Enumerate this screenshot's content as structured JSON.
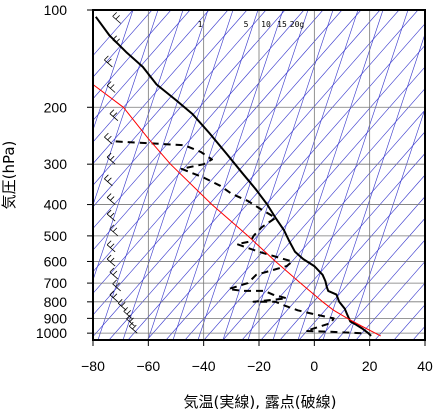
{
  "chart_data": {
    "type": "line",
    "diagram": "skew-T log-P",
    "xlabel": "気温(実線), 露点(破線)",
    "ylabel": "気圧(hPa)",
    "xlim": [
      -80,
      40
    ],
    "ylim": [
      1050,
      100
    ],
    "y_scale": "log",
    "x_ticks": [
      -80,
      -60,
      -40,
      -20,
      0,
      20,
      40
    ],
    "y_ticks": [
      100,
      200,
      300,
      400,
      500,
      600,
      700,
      800,
      900,
      1000
    ],
    "mixing_ratio_labels": [
      "1",
      "5",
      "10",
      "15",
      "20g"
    ],
    "colors": {
      "temperature": "#000000",
      "dewpoint": "#000000",
      "reference": "#ff0000",
      "guide_lines": "#3333cc"
    },
    "series": [
      {
        "style": "solid",
        "points": [
          {
            "p": 1020,
            "x": 20.5
          },
          {
            "p": 1000,
            "x": 19.5
          },
          {
            "p": 970,
            "x": 17.5
          },
          {
            "p": 940,
            "x": 15
          },
          {
            "p": 920,
            "x": 13
          },
          {
            "p": 880,
            "x": 12
          },
          {
            "p": 840,
            "x": 11
          },
          {
            "p": 800,
            "x": 9
          },
          {
            "p": 760,
            "x": 8
          },
          {
            "p": 740,
            "x": 5
          },
          {
            "p": 720,
            "x": 4.5
          },
          {
            "p": 690,
            "x": 4
          },
          {
            "p": 660,
            "x": 3
          },
          {
            "p": 620,
            "x": 0
          },
          {
            "p": 590,
            "x": -4
          },
          {
            "p": 560,
            "x": -7
          },
          {
            "p": 520,
            "x": -9
          },
          {
            "p": 480,
            "x": -11
          },
          {
            "p": 440,
            "x": -14
          },
          {
            "p": 400,
            "x": -17
          },
          {
            "p": 360,
            "x": -21
          },
          {
            "p": 320,
            "x": -26
          },
          {
            "p": 280,
            "x": -31.5
          },
          {
            "p": 240,
            "x": -38
          },
          {
            "p": 210,
            "x": -44
          },
          {
            "p": 190,
            "x": -50
          },
          {
            "p": 170,
            "x": -57
          },
          {
            "p": 150,
            "x": -62
          },
          {
            "p": 135,
            "x": -68
          },
          {
            "p": 120,
            "x": -74
          },
          {
            "p": 105,
            "x": -79
          }
        ]
      },
      {
        "style": "dashed",
        "points": [
          {
            "p": 1000,
            "x": 17
          },
          {
            "p": 990,
            "x": 5
          },
          {
            "p": 985,
            "x": -3
          },
          {
            "p": 960,
            "x": 1
          },
          {
            "p": 930,
            "x": 6
          },
          {
            "p": 900,
            "x": 7
          },
          {
            "p": 870,
            "x": -1
          },
          {
            "p": 850,
            "x": -6
          },
          {
            "p": 820,
            "x": -11
          },
          {
            "p": 800,
            "x": -14
          },
          {
            "p": 800,
            "x": -22
          },
          {
            "p": 780,
            "x": -10
          },
          {
            "p": 760,
            "x": -15
          },
          {
            "p": 740,
            "x": -18
          },
          {
            "p": 740,
            "x": -26
          },
          {
            "p": 730,
            "x": -31
          },
          {
            "p": 700,
            "x": -24
          },
          {
            "p": 660,
            "x": -21
          },
          {
            "p": 620,
            "x": -10
          },
          {
            "p": 600,
            "x": -8
          },
          {
            "p": 560,
            "x": -20
          },
          {
            "p": 530,
            "x": -28
          },
          {
            "p": 520,
            "x": -23
          },
          {
            "p": 500,
            "x": -22
          },
          {
            "p": 470,
            "x": -19
          },
          {
            "p": 440,
            "x": -14
          },
          {
            "p": 410,
            "x": -20
          },
          {
            "p": 390,
            "x": -24
          },
          {
            "p": 370,
            "x": -30
          },
          {
            "p": 350,
            "x": -34
          },
          {
            "p": 330,
            "x": -40
          },
          {
            "p": 310,
            "x": -48
          },
          {
            "p": 300,
            "x": -40
          },
          {
            "p": 290,
            "x": -37
          },
          {
            "p": 275,
            "x": -41
          },
          {
            "p": 262,
            "x": -47
          },
          {
            "p": 255,
            "x": -72
          }
        ]
      },
      {
        "style": "solid",
        "points": [
          {
            "p": 1020,
            "x": 24
          },
          {
            "p": 950,
            "x": 17
          },
          {
            "p": 900,
            "x": 12
          },
          {
            "p": 850,
            "x": 7
          },
          {
            "p": 800,
            "x": 3
          },
          {
            "p": 700,
            "x": -5
          },
          {
            "p": 600,
            "x": -14
          },
          {
            "p": 500,
            "x": -24
          },
          {
            "p": 400,
            "x": -37
          },
          {
            "p": 300,
            "x": -52
          },
          {
            "p": 250,
            "x": -60
          },
          {
            "p": 200,
            "x": -69
          },
          {
            "p": 170,
            "x": -80
          }
        ]
      }
    ]
  }
}
